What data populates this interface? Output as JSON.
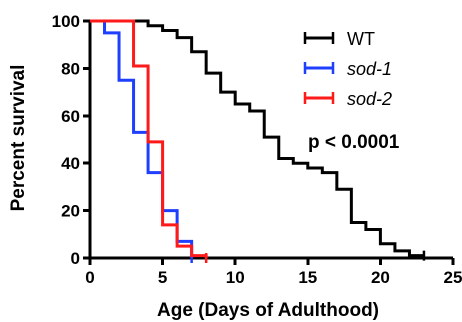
{
  "chart_data": {
    "type": "line",
    "step": true,
    "xlabel": "Age (Days of Adulthood)",
    "ylabel": "Percent survival",
    "xlim": [
      0,
      25
    ],
    "ylim": [
      0,
      100
    ],
    "x_ticks": [
      0,
      5,
      10,
      15,
      20,
      25
    ],
    "y_ticks": [
      0,
      20,
      40,
      60,
      80,
      100
    ],
    "x_tick_labels": [
      "0",
      "5",
      "10",
      "15",
      "20",
      "25"
    ],
    "y_tick_labels": [
      "0",
      "20",
      "40",
      "60",
      "80",
      "100"
    ],
    "legend_position": "top-right",
    "annotation": "p < 0.0001",
    "series": [
      {
        "name": "WT",
        "italic": false,
        "color": "#000000",
        "x": [
          0,
          3,
          4,
          5,
          6,
          7,
          8,
          9,
          10,
          11,
          12,
          13,
          14,
          15,
          16,
          17,
          18,
          19,
          20,
          21,
          22,
          23
        ],
        "y": [
          100,
          100,
          98,
          96,
          93,
          87,
          78,
          70,
          65,
          62,
          51,
          42,
          40,
          38,
          36,
          29,
          15,
          12,
          6,
          3,
          1,
          1
        ]
      },
      {
        "name": "sod-1",
        "italic": true,
        "color": "#1f3fff",
        "x": [
          0,
          1,
          2,
          3,
          4,
          5,
          6,
          7
        ],
        "y": [
          100,
          95,
          75,
          53,
          36,
          20,
          7,
          0
        ]
      },
      {
        "name": "sod-2",
        "italic": true,
        "color": "#ff1a1a",
        "x": [
          0,
          3,
          4,
          5,
          6,
          7,
          8
        ],
        "y": [
          100,
          81,
          49,
          14,
          5,
          1,
          0
        ]
      }
    ]
  }
}
